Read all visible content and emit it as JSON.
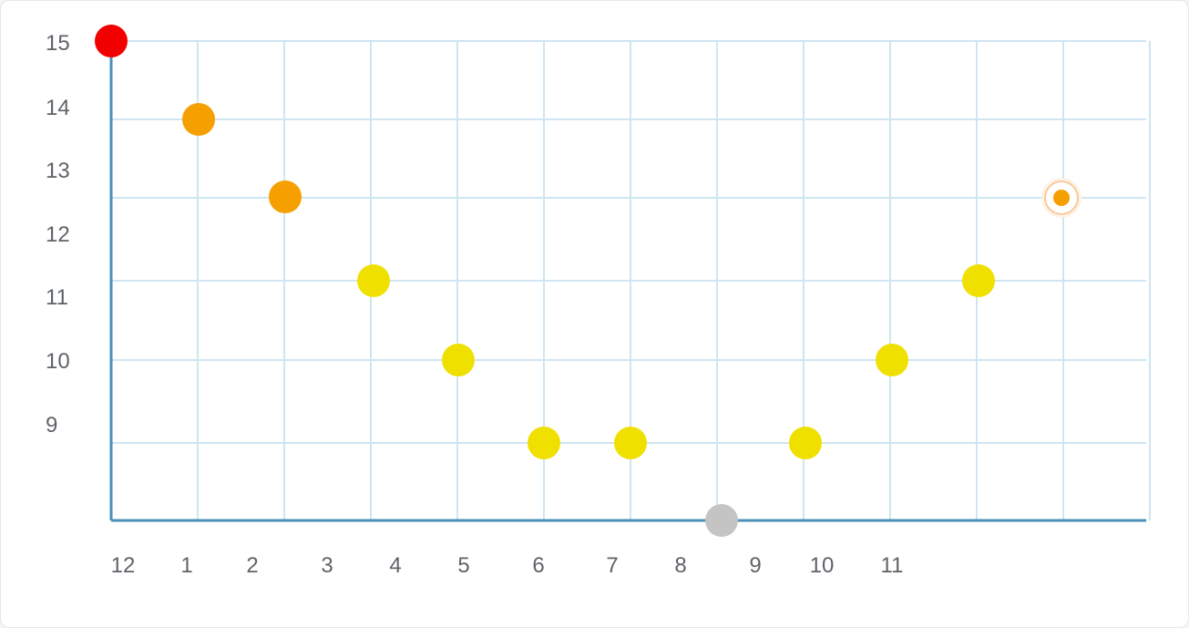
{
  "chart_data": {
    "type": "scatter",
    "title": "",
    "xlabel": "",
    "ylabel": "",
    "xlim": [
      0,
      12
    ],
    "ylim": [
      7,
      15
    ],
    "y_ticks": [
      "15",
      "14",
      "13",
      "12",
      "11",
      "10",
      "9"
    ],
    "x_ticks": [
      "12",
      "1",
      "2",
      "3",
      "4",
      "5",
      "6",
      "7",
      "8",
      "9",
      "10",
      "11"
    ],
    "grid": true,
    "points": [
      {
        "x": 0,
        "y": 15,
        "color": "#f20000",
        "style": "filled"
      },
      {
        "x": 1,
        "y": 14,
        "color": "#f5a000",
        "style": "filled"
      },
      {
        "x": 2,
        "y": 13,
        "color": "#f5a000",
        "style": "filled"
      },
      {
        "x": 3,
        "y": 11.9,
        "color": "#f0e000",
        "style": "filled"
      },
      {
        "x": 4,
        "y": 10.9,
        "color": "#f0e000",
        "style": "filled"
      },
      {
        "x": 5,
        "y": 9.9,
        "color": "#f0e000",
        "style": "filled"
      },
      {
        "x": 6,
        "y": 9.9,
        "color": "#f0e000",
        "style": "filled"
      },
      {
        "x": 7.05,
        "y": 8.9,
        "color": "#c4c4c4",
        "style": "filled"
      },
      {
        "x": 8,
        "y": 9.9,
        "color": "#f0e000",
        "style": "filled"
      },
      {
        "x": 9,
        "y": 10.9,
        "color": "#f0e000",
        "style": "filled"
      },
      {
        "x": 10,
        "y": 11.9,
        "color": "#f0e000",
        "style": "filled"
      },
      {
        "x": 11,
        "y": 13,
        "color": "#f5a000",
        "style": "ringed"
      }
    ]
  },
  "colors": {
    "axis": "#4a90b8",
    "grid": "#cfe6f2",
    "tick_text": "#5f6368"
  }
}
